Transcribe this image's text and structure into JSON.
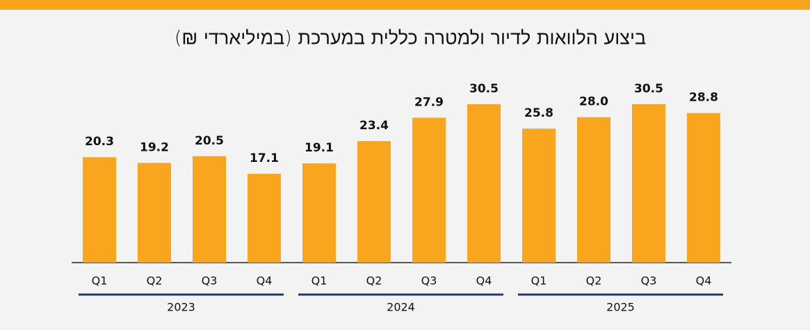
{
  "chart_data": {
    "type": "bar",
    "title": "ביצוע הלוואות לדיור ולמטרה כללית במערכת (במיליארדי ₪)",
    "groups": [
      {
        "name": "2023",
        "categories": [
          "Q1",
          "Q2",
          "Q3",
          "Q4"
        ]
      },
      {
        "name": "2024",
        "categories": [
          "Q1",
          "Q2",
          "Q3",
          "Q4"
        ]
      },
      {
        "name": "2025",
        "categories": [
          "Q1",
          "Q2",
          "Q3",
          "Q4"
        ]
      }
    ],
    "values": [
      20.3,
      19.2,
      20.5,
      17.1,
      19.1,
      23.4,
      27.9,
      30.5,
      25.8,
      28.0,
      30.5,
      28.8
    ],
    "value_labels": [
      "20.3",
      "19.2",
      "20.5",
      "17.1",
      "19.1",
      "23.4",
      "27.9",
      "30.5",
      "25.8",
      "28.0",
      "30.5",
      "28.8"
    ],
    "color": "#f9a61e"
  }
}
